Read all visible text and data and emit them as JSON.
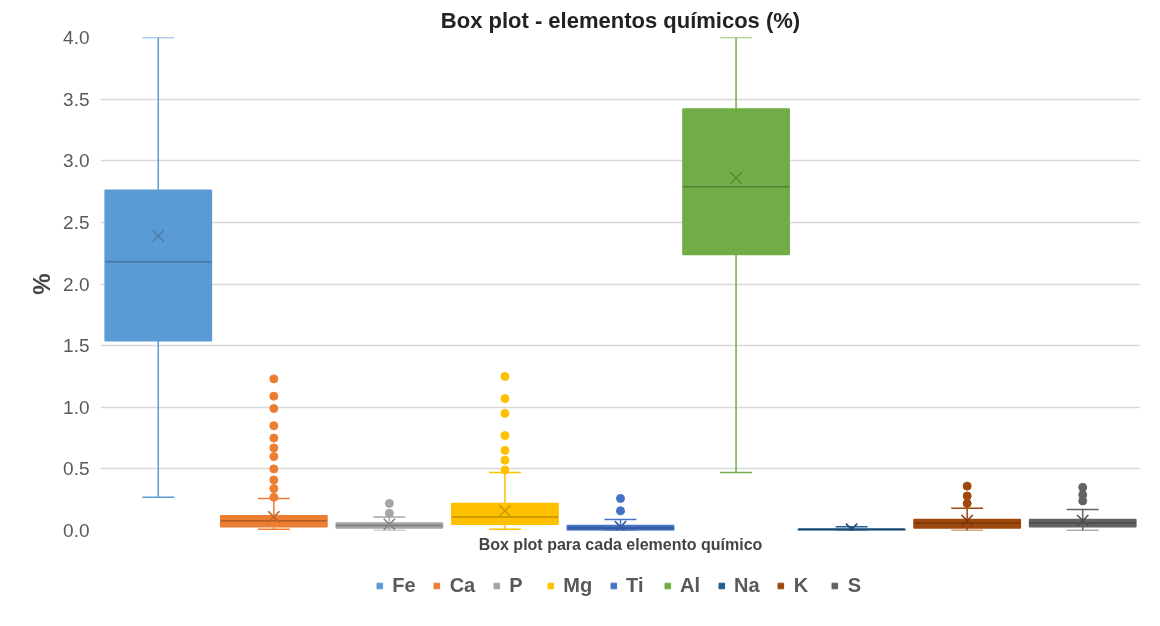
{
  "chart_data": {
    "type": "box",
    "title": "Box plot - elementos químicos (%)",
    "xlabel": "Box plot para cada elemento químico",
    "ylabel": "%",
    "categories": [
      null
    ],
    "ylim": [
      0,
      4
    ],
    "yticks": [
      {
        "value": 0,
        "label": "0.0"
      },
      {
        "value": 0.5,
        "label": "0.5"
      },
      {
        "value": 1,
        "label": "1.0"
      },
      {
        "value": 1.5,
        "label": "1.5"
      },
      {
        "value": 2,
        "label": "2.0"
      },
      {
        "value": 2.5,
        "label": "2.5"
      },
      {
        "value": 3,
        "label": "3.0"
      },
      {
        "value": 3.5,
        "label": "3.5"
      },
      {
        "value": 4,
        "label": "4.0"
      }
    ],
    "grid": "y",
    "legend": "bottom",
    "series": [
      {
        "name": "Fe",
        "color": "#5b9bd5",
        "boxes": [
          {
            "low": 0.27,
            "q1": 1.54,
            "median": 2.18,
            "q3": 2.76,
            "high": 4.0,
            "mean": 2.39
          }
        ]
      },
      {
        "name": "Ca",
        "color": "#ed7d31",
        "boxes": [
          {
            "low": 0.01,
            "q1": 0.03,
            "median": 0.08,
            "q3": 0.12,
            "high": 0.26,
            "mean": 0.11,
            "outliers": [
              1.23,
              1.09,
              0.99,
              0.85,
              0.75,
              0.67,
              0.6,
              0.5,
              0.41,
              0.34,
              0.27
            ]
          }
        ]
      },
      {
        "name": "P",
        "color": "#a5a5a5",
        "boxes": [
          {
            "low": 0.0,
            "q1": 0.02,
            "median": 0.04,
            "q3": 0.06,
            "high": 0.11,
            "mean": 0.05,
            "outliers": [
              0.22,
              0.14
            ]
          }
        ]
      },
      {
        "name": "Mg",
        "color": "#ffc000",
        "boxes": [
          {
            "low": 0.01,
            "q1": 0.05,
            "median": 0.11,
            "q3": 0.22,
            "high": 0.47,
            "mean": 0.16,
            "outliers": [
              1.25,
              1.07,
              0.95,
              0.77,
              0.65,
              0.57,
              0.49
            ]
          }
        ]
      },
      {
        "name": "Ti",
        "color": "#4472c4",
        "boxes": [
          {
            "low": 0.0,
            "q1": 0.0,
            "median": 0.02,
            "q3": 0.04,
            "high": 0.09,
            "mean": 0.03,
            "outliers": [
              0.26,
              0.16
            ]
          }
        ]
      },
      {
        "name": "Al",
        "color": "#70ad47",
        "boxes": [
          {
            "low": 0.47,
            "q1": 2.24,
            "median": 2.79,
            "q3": 3.42,
            "high": 4.0,
            "mean": 2.86
          }
        ]
      },
      {
        "name": "Na",
        "color": "#255e91",
        "boxes": [
          {
            "low": 0.0,
            "q1": 0.0,
            "median": 0.01,
            "q3": 0.01,
            "high": 0.03,
            "mean": 0.01
          }
        ]
      },
      {
        "name": "K",
        "color": "#9e480e",
        "boxes": [
          {
            "low": 0.0,
            "q1": 0.02,
            "median": 0.06,
            "q3": 0.09,
            "high": 0.18,
            "mean": 0.08,
            "outliers": [
              0.36,
              0.28,
              0.22
            ]
          }
        ]
      },
      {
        "name": "S",
        "color": "#636363",
        "boxes": [
          {
            "low": 0.0,
            "q1": 0.03,
            "median": 0.06,
            "q3": 0.09,
            "high": 0.17,
            "mean": 0.08,
            "outliers": [
              0.35,
              0.29,
              0.24
            ]
          }
        ]
      }
    ]
  }
}
